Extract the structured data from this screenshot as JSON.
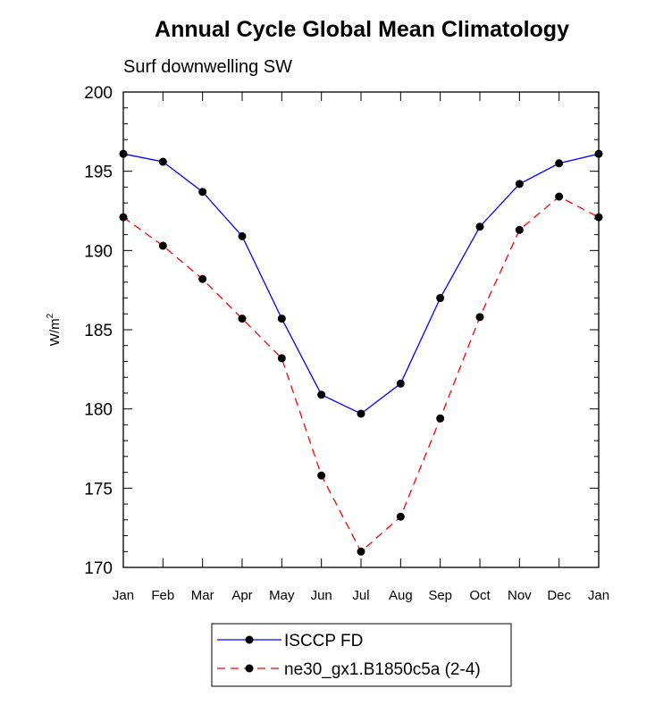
{
  "chart_data": {
    "type": "line",
    "title": "Annual Cycle Global Mean Climatology",
    "subtitle": "Surf downwelling SW",
    "ylabel": "W/m",
    "ylabel_sup": "2",
    "xlabel": "",
    "categories": [
      "Jan",
      "Feb",
      "Mar",
      "Apr",
      "May",
      "Jun",
      "Jul",
      "Aug",
      "Sep",
      "Oct",
      "Nov",
      "Dec",
      "Jan"
    ],
    "ylim": [
      170,
      200
    ],
    "yticks": [
      170,
      175,
      180,
      185,
      190,
      195,
      200
    ],
    "grid": false,
    "legend_position": "bottom",
    "series": [
      {
        "name": "ISCCP FD",
        "color": "#0000ff",
        "style": "solid",
        "marker": "circle",
        "values": [
          196.1,
          195.6,
          193.7,
          190.9,
          185.7,
          180.9,
          179.7,
          181.6,
          187.0,
          191.5,
          194.2,
          195.5,
          196.1
        ]
      },
      {
        "name": "ne30_gx1.B1850c5a (2-4)",
        "color": "#ff0000",
        "style": "dashed",
        "marker": "circle",
        "values": [
          192.1,
          190.3,
          188.2,
          185.7,
          183.2,
          175.8,
          171.0,
          173.2,
          179.4,
          185.8,
          191.3,
          193.4,
          192.1
        ]
      }
    ]
  }
}
